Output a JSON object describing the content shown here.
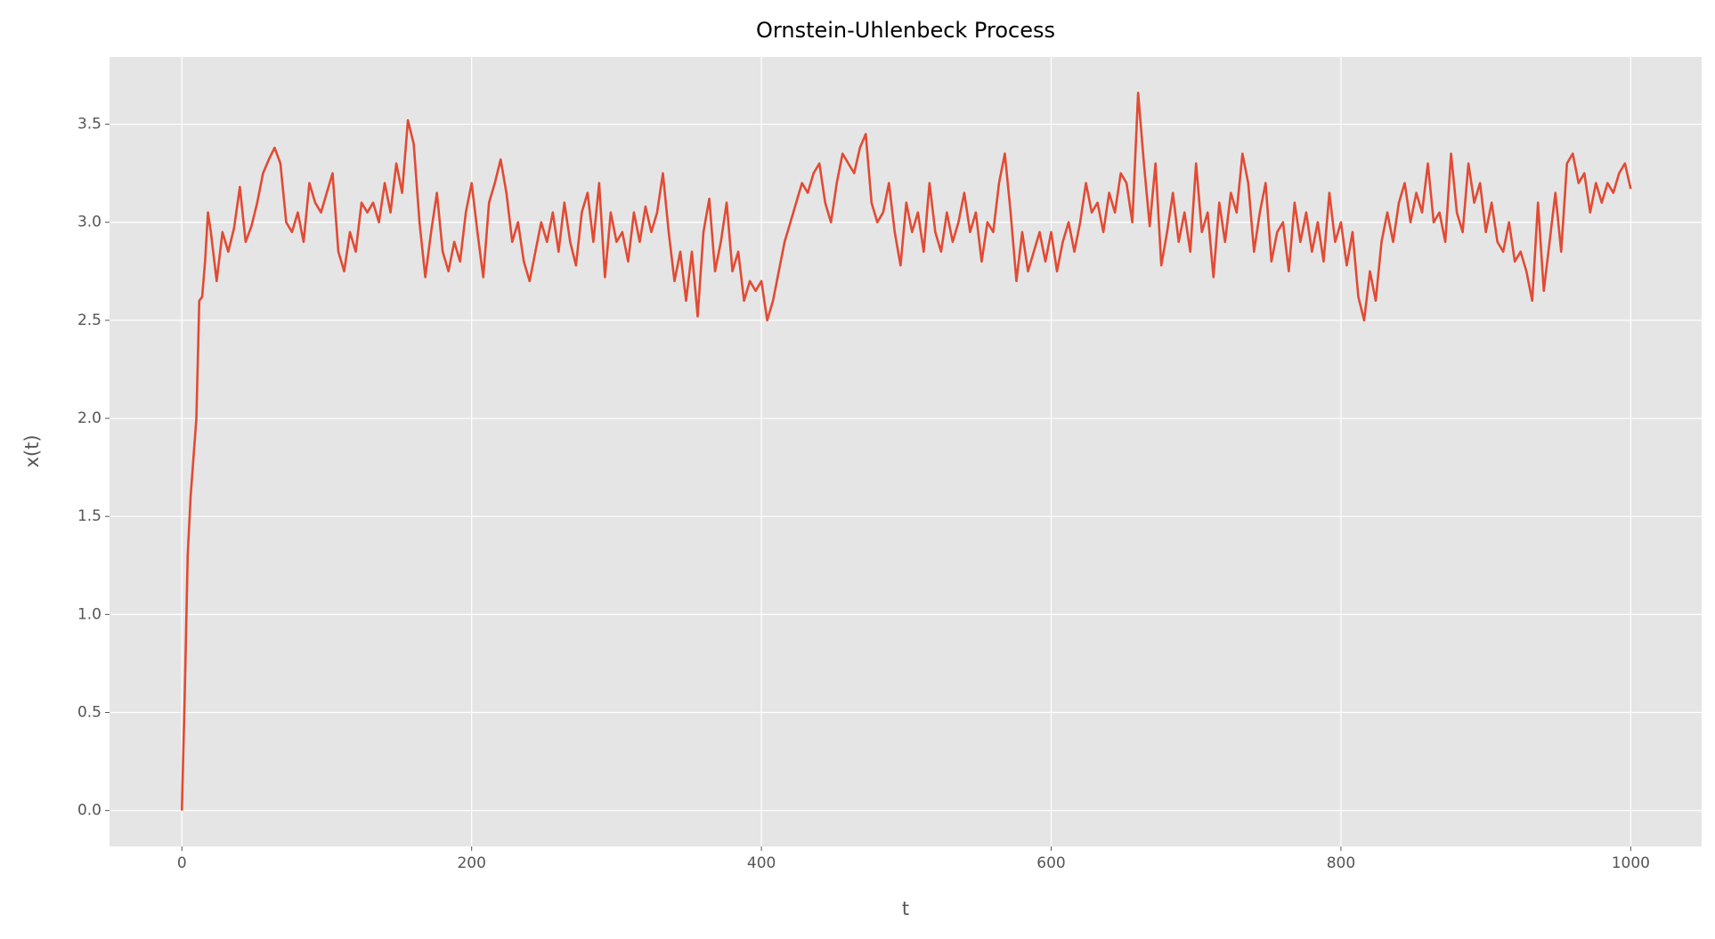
{
  "chart_data": {
    "type": "line",
    "title": "Ornstein-Uhlenbeck Process",
    "x_label": "t",
    "y_label": "x(t)",
    "color": "#E24A33",
    "grid": true,
    "x": [
      0,
      2,
      4,
      6,
      8,
      10,
      12,
      14,
      16,
      18,
      20,
      24,
      28,
      32,
      36,
      40,
      44,
      48,
      52,
      56,
      60,
      64,
      68,
      72,
      76,
      80,
      84,
      88,
      92,
      96,
      100,
      104,
      108,
      112,
      116,
      120,
      124,
      128,
      132,
      136,
      140,
      144,
      148,
      152,
      156,
      160,
      164,
      168,
      172,
      176,
      180,
      184,
      188,
      192,
      196,
      200,
      204,
      208,
      212,
      216,
      220,
      224,
      228,
      232,
      236,
      240,
      244,
      248,
      252,
      256,
      260,
      264,
      268,
      272,
      276,
      280,
      284,
      288,
      292,
      296,
      300,
      304,
      308,
      312,
      316,
      320,
      324,
      328,
      332,
      336,
      340,
      344,
      348,
      352,
      356,
      360,
      364,
      368,
      372,
      376,
      380,
      384,
      388,
      392,
      396,
      400,
      404,
      408,
      412,
      416,
      420,
      424,
      428,
      432,
      436,
      440,
      444,
      448,
      452,
      456,
      460,
      464,
      468,
      472,
      476,
      480,
      484,
      488,
      492,
      496,
      500,
      504,
      508,
      512,
      516,
      520,
      524,
      528,
      532,
      536,
      540,
      544,
      548,
      552,
      556,
      560,
      564,
      568,
      572,
      576,
      580,
      584,
      588,
      592,
      596,
      600,
      604,
      608,
      612,
      616,
      620,
      624,
      628,
      632,
      636,
      640,
      644,
      648,
      652,
      656,
      660,
      664,
      668,
      672,
      676,
      680,
      684,
      688,
      692,
      696,
      700,
      704,
      708,
      712,
      716,
      720,
      724,
      728,
      732,
      736,
      740,
      744,
      748,
      752,
      756,
      760,
      764,
      768,
      772,
      776,
      780,
      784,
      788,
      792,
      796,
      800,
      804,
      808,
      812,
      816,
      820,
      824,
      828,
      832,
      836,
      840,
      844,
      848,
      852,
      856,
      860,
      864,
      868,
      872,
      876,
      880,
      884,
      888,
      892,
      896,
      900,
      904,
      908,
      912,
      916,
      920,
      924,
      928,
      932,
      936,
      940,
      944,
      948,
      952,
      956,
      960,
      964,
      968,
      972,
      976,
      980,
      984,
      988,
      992,
      996,
      1000
    ],
    "values": [
      0,
      0.6,
      1.3,
      1.6,
      1.8,
      2.0,
      2.6,
      2.62,
      2.8,
      3.05,
      2.95,
      2.7,
      2.95,
      2.85,
      2.97,
      3.18,
      2.9,
      2.98,
      3.1,
      3.25,
      3.32,
      3.38,
      3.3,
      3.0,
      2.95,
      3.05,
      2.9,
      3.2,
      3.1,
      3.05,
      3.15,
      3.25,
      2.85,
      2.75,
      2.95,
      2.85,
      3.1,
      3.05,
      3.1,
      3.0,
      3.2,
      3.05,
      3.3,
      3.15,
      3.52,
      3.4,
      3.0,
      2.72,
      2.95,
      3.15,
      2.85,
      2.75,
      2.9,
      2.8,
      3.05,
      3.2,
      2.95,
      2.72,
      3.1,
      3.2,
      3.32,
      3.15,
      2.9,
      3.0,
      2.8,
      2.7,
      2.85,
      3.0,
      2.9,
      3.05,
      2.85,
      3.1,
      2.9,
      2.78,
      3.05,
      3.15,
      2.9,
      3.2,
      2.72,
      3.05,
      2.9,
      2.95,
      2.8,
      3.05,
      2.9,
      3.08,
      2.95,
      3.05,
      3.25,
      2.95,
      2.7,
      2.85,
      2.6,
      2.85,
      2.52,
      2.95,
      3.12,
      2.75,
      2.9,
      3.1,
      2.75,
      2.85,
      2.6,
      2.7,
      2.65,
      2.7,
      2.5,
      2.6,
      2.75,
      2.9,
      3.0,
      3.1,
      3.2,
      3.15,
      3.25,
      3.3,
      3.1,
      3.0,
      3.2,
      3.35,
      3.3,
      3.25,
      3.38,
      3.45,
      3.1,
      3.0,
      3.05,
      3.2,
      2.95,
      2.78,
      3.1,
      2.95,
      3.05,
      2.85,
      3.2,
      2.95,
      2.85,
      3.05,
      2.9,
      3.0,
      3.15,
      2.95,
      3.05,
      2.8,
      3.0,
      2.95,
      3.2,
      3.35,
      3.05,
      2.7,
      2.95,
      2.75,
      2.85,
      2.95,
      2.8,
      2.95,
      2.75,
      2.9,
      3.0,
      2.85,
      3.0,
      3.2,
      3.05,
      3.1,
      2.95,
      3.15,
      3.05,
      3.25,
      3.2,
      3.0,
      3.66,
      3.3,
      2.98,
      3.3,
      2.78,
      2.95,
      3.15,
      2.9,
      3.05,
      2.85,
      3.3,
      2.95,
      3.05,
      2.72,
      3.1,
      2.9,
      3.15,
      3.05,
      3.35,
      3.2,
      2.85,
      3.05,
      3.2,
      2.8,
      2.95,
      3.0,
      2.75,
      3.1,
      2.9,
      3.05,
      2.85,
      3.0,
      2.8,
      3.15,
      2.9,
      3.0,
      2.78,
      2.95,
      2.62,
      2.5,
      2.75,
      2.6,
      2.9,
      3.05,
      2.9,
      3.1,
      3.2,
      3.0,
      3.15,
      3.05,
      3.3,
      3.0,
      3.05,
      2.9,
      3.35,
      3.05,
      2.95,
      3.3,
      3.1,
      3.2,
      2.95,
      3.1,
      2.9,
      2.85,
      3.0,
      2.8,
      2.85,
      2.75,
      2.6,
      3.1,
      2.65,
      2.9,
      3.15,
      2.85,
      3.3,
      3.35,
      3.2,
      3.25,
      3.05,
      3.2,
      3.1,
      3.2,
      3.15,
      3.25,
      3.3,
      3.17
    ],
    "xlim": [
      -49.95,
      1048.95
    ],
    "ylim": [
      -0.183,
      3.843
    ],
    "xticks": [
      0,
      200,
      400,
      600,
      800,
      1000
    ],
    "yticks": [
      {
        "value": 0,
        "label": "0.0"
      },
      0.5,
      {
        "value": 1,
        "label": "1.0"
      },
      1.5,
      {
        "value": 2,
        "label": "2.0"
      },
      2.5,
      {
        "value": 3,
        "label": "3.0"
      },
      3.5
    ]
  }
}
